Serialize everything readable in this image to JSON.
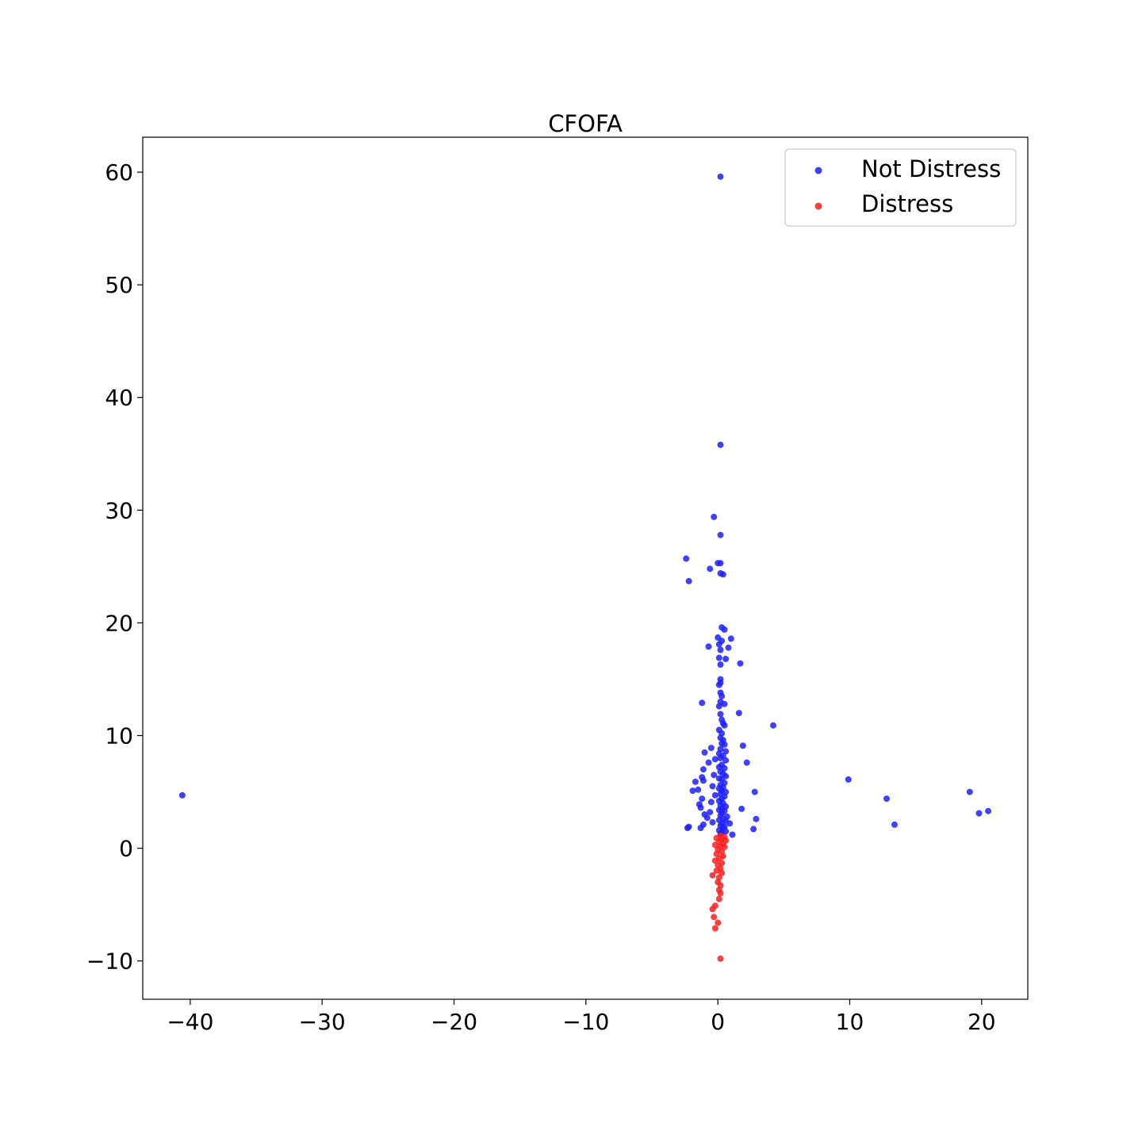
{
  "chart_data": {
    "type": "scatter",
    "title": "CFOFA",
    "xlabel": "",
    "ylabel": "",
    "xlim": [
      -43.6,
      23.5
    ],
    "ylim": [
      -13.4,
      63.1
    ],
    "x_ticks": [
      -40,
      -30,
      -20,
      -10,
      0,
      10,
      20
    ],
    "x_tick_labels": [
      "−40",
      "−30",
      "−20",
      "−10",
      "0",
      "10",
      "20"
    ],
    "y_ticks": [
      -10,
      0,
      10,
      20,
      30,
      40,
      50,
      60
    ],
    "y_tick_labels": [
      "−10",
      "0",
      "10",
      "20",
      "30",
      "40",
      "50",
      "60"
    ],
    "grid": false,
    "legend_position": "top-right",
    "series": [
      {
        "name": "Not Distress",
        "color": "#1f1fff",
        "points": [
          [
            0.2,
            59.6
          ],
          [
            0.2,
            35.8
          ],
          [
            -0.3,
            29.4
          ],
          [
            0.2,
            27.8
          ],
          [
            -2.4,
            25.7
          ],
          [
            0.0,
            25.3
          ],
          [
            0.2,
            25.3
          ],
          [
            -0.6,
            24.8
          ],
          [
            0.2,
            24.4
          ],
          [
            0.4,
            24.3
          ],
          [
            -2.2,
            23.7
          ],
          [
            0.3,
            19.6
          ],
          [
            0.5,
            19.4
          ],
          [
            0.0,
            18.7
          ],
          [
            1.0,
            18.6
          ],
          [
            0.3,
            18.4
          ],
          [
            0.1,
            18.1
          ],
          [
            -0.7,
            17.9
          ],
          [
            0.8,
            17.8
          ],
          [
            0.2,
            17.6
          ],
          [
            0.1,
            16.9
          ],
          [
            0.6,
            16.8
          ],
          [
            1.7,
            16.4
          ],
          [
            0.2,
            16.3
          ],
          [
            0.2,
            15.0
          ],
          [
            0.2,
            14.7
          ],
          [
            0.1,
            14.5
          ],
          [
            0.2,
            13.8
          ],
          [
            0.3,
            13.5
          ],
          [
            0.2,
            13.0
          ],
          [
            0.5,
            12.8
          ],
          [
            -1.2,
            12.9
          ],
          [
            0.1,
            12.6
          ],
          [
            1.6,
            12.0
          ],
          [
            0.2,
            11.9
          ],
          [
            0.3,
            11.4
          ],
          [
            0.4,
            11.1
          ],
          [
            0.5,
            10.9
          ],
          [
            4.2,
            10.9
          ],
          [
            0.1,
            10.5
          ],
          [
            0.3,
            10.2
          ],
          [
            0.2,
            9.8
          ],
          [
            0.4,
            9.6
          ],
          [
            0.3,
            9.3
          ],
          [
            0.5,
            9.2
          ],
          [
            1.9,
            9.1
          ],
          [
            -0.5,
            8.9
          ],
          [
            0.2,
            8.8
          ],
          [
            0.6,
            8.6
          ],
          [
            -1.0,
            8.5
          ],
          [
            0.1,
            8.4
          ],
          [
            0.4,
            8.2
          ],
          [
            0.2,
            8.0
          ],
          [
            -0.2,
            7.9
          ],
          [
            0.6,
            7.8
          ],
          [
            2.2,
            7.6
          ],
          [
            -0.7,
            7.6
          ],
          [
            0.3,
            7.4
          ],
          [
            0.1,
            7.2
          ],
          [
            0.5,
            7.1
          ],
          [
            -1.1,
            7.0
          ],
          [
            0.2,
            6.8
          ],
          [
            0.4,
            6.6
          ],
          [
            -0.3,
            6.5
          ],
          [
            0.6,
            6.4
          ],
          [
            -1.2,
            6.3
          ],
          [
            0.1,
            6.2
          ],
          [
            0.3,
            6.1
          ],
          [
            9.9,
            6.1
          ],
          [
            -1.1,
            6.0
          ],
          [
            -1.7,
            5.9
          ],
          [
            0.5,
            5.8
          ],
          [
            0.2,
            5.6
          ],
          [
            -0.4,
            5.5
          ],
          [
            0.4,
            5.4
          ],
          [
            0.1,
            5.3
          ],
          [
            -1.5,
            5.2
          ],
          [
            0.3,
            5.1
          ],
          [
            -1.9,
            5.1
          ],
          [
            0.6,
            5.0
          ],
          [
            2.8,
            5.0
          ],
          [
            19.1,
            5.0
          ],
          [
            0.2,
            4.8
          ],
          [
            -0.2,
            4.7
          ],
          [
            -40.6,
            4.7
          ],
          [
            0.5,
            4.6
          ],
          [
            0.3,
            4.4
          ],
          [
            12.8,
            4.4
          ],
          [
            -1.2,
            4.4
          ],
          [
            0.1,
            4.2
          ],
          [
            -0.5,
            4.1
          ],
          [
            0.4,
            4.0
          ],
          [
            -1.4,
            3.9
          ],
          [
            0.2,
            3.8
          ],
          [
            0.6,
            3.7
          ],
          [
            -1.3,
            3.6
          ],
          [
            0.3,
            3.5
          ],
          [
            1.8,
            3.5
          ],
          [
            0.1,
            3.4
          ],
          [
            0.5,
            3.3
          ],
          [
            20.5,
            3.3
          ],
          [
            -0.6,
            3.2
          ],
          [
            0.3,
            3.1
          ],
          [
            19.8,
            3.1
          ],
          [
            -1.0,
            3.0
          ],
          [
            0.2,
            2.9
          ],
          [
            0.7,
            2.8
          ],
          [
            -0.8,
            2.7
          ],
          [
            0.4,
            2.6
          ],
          [
            2.9,
            2.6
          ],
          [
            0.1,
            2.5
          ],
          [
            0.6,
            2.4
          ],
          [
            -0.4,
            2.3
          ],
          [
            0.3,
            2.2
          ],
          [
            0.9,
            2.2
          ],
          [
            13.4,
            2.1
          ],
          [
            -1.1,
            2.1
          ],
          [
            0.2,
            2.0
          ],
          [
            0.5,
            1.9
          ],
          [
            -2.2,
            1.9
          ],
          [
            -2.3,
            1.8
          ],
          [
            -1.3,
            1.8
          ],
          [
            0.4,
            1.8
          ],
          [
            2.7,
            1.7
          ],
          [
            0.1,
            1.6
          ],
          [
            0.6,
            1.5
          ],
          [
            0.3,
            1.4
          ],
          [
            1.1,
            1.2
          ],
          [
            0.2,
            1.3
          ]
        ]
      },
      {
        "name": "Distress",
        "color": "#ff1f1f",
        "points": [
          [
            0.2,
            1.1
          ],
          [
            0.5,
            1.0
          ],
          [
            -0.1,
            0.9
          ],
          [
            0.3,
            0.8
          ],
          [
            0.6,
            0.7
          ],
          [
            0.1,
            0.6
          ],
          [
            0.4,
            0.4
          ],
          [
            -0.2,
            0.3
          ],
          [
            0.2,
            0.2
          ],
          [
            0.5,
            0.1
          ],
          [
            0.0,
            -0.1
          ],
          [
            0.3,
            -0.3
          ],
          [
            -0.1,
            -0.5
          ],
          [
            0.4,
            -0.7
          ],
          [
            0.1,
            -0.9
          ],
          [
            -0.2,
            -1.1
          ],
          [
            0.3,
            -1.3
          ],
          [
            0.0,
            -1.5
          ],
          [
            0.2,
            -1.8
          ],
          [
            -0.1,
            -2.0
          ],
          [
            0.3,
            -2.2
          ],
          [
            -0.4,
            -2.4
          ],
          [
            0.1,
            -2.6
          ],
          [
            0.0,
            -3.0
          ],
          [
            0.2,
            -3.3
          ],
          [
            0.1,
            -3.7
          ],
          [
            0.2,
            -4.0
          ],
          [
            0.1,
            -4.5
          ],
          [
            -0.2,
            -5.1
          ],
          [
            -0.4,
            -5.4
          ],
          [
            -0.3,
            -6.1
          ],
          [
            0.0,
            -6.6
          ],
          [
            -0.2,
            -7.1
          ],
          [
            0.2,
            -9.8
          ]
        ]
      }
    ]
  }
}
